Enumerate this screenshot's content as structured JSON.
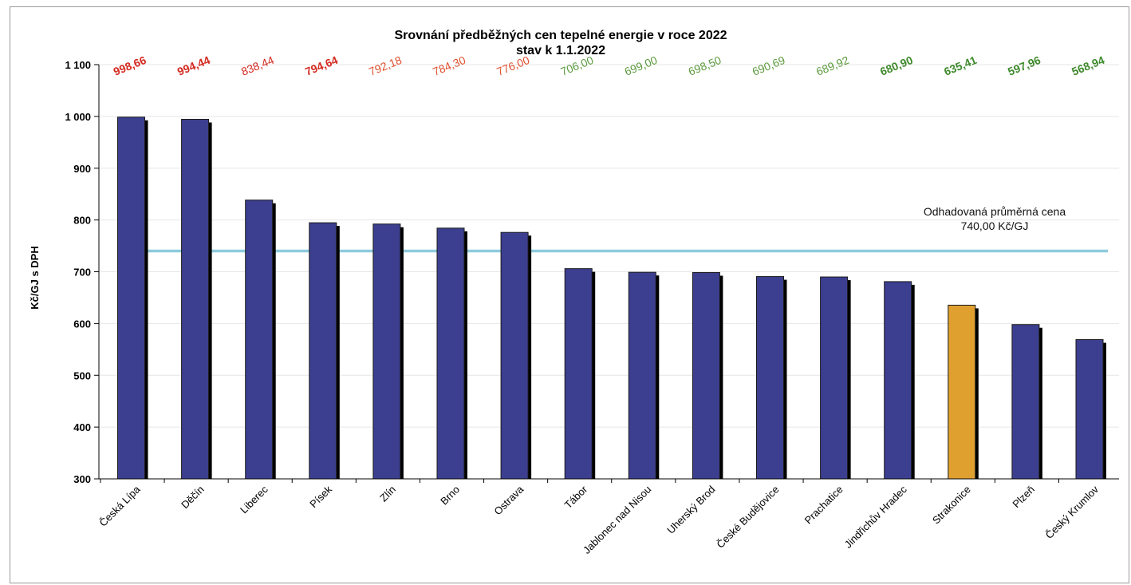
{
  "chart_data": {
    "type": "bar",
    "title": "Srovnání předběžných cen tepelné energie v roce 2022",
    "subtitle": "stav k 1.1.2022",
    "ylabel": "Kč/GJ s DPH",
    "xlabel": "",
    "ylim": [
      300,
      1100
    ],
    "yticks": [
      "1 100",
      "1 000",
      "900",
      "800",
      "700",
      "600",
      "500",
      "400",
      "300"
    ],
    "ytick_values": [
      1100,
      1000,
      900,
      800,
      700,
      600,
      500,
      400,
      300
    ],
    "grid": true,
    "categories": [
      "Česká Lípa",
      "Děčín",
      "Liberec",
      "Písek",
      "Zlín",
      "Brno",
      "Ostrava",
      "Tábor",
      "Jablonec nad Nisou",
      "Uherský Brod",
      "České Budějovice",
      "Prachatice",
      "Jindřichův Hradec",
      "Strakonice",
      "Plzeň",
      "Český Krumlov"
    ],
    "values": [
      998.66,
      994.44,
      838.44,
      794.64,
      792.18,
      784.3,
      776.0,
      706.0,
      699.0,
      698.5,
      690.69,
      689.92,
      680.9,
      635.41,
      597.96,
      568.94
    ],
    "value_labels": [
      "998,66",
      "994,44",
      "838,44",
      "794,64",
      "792,18",
      "784,30",
      "776,00",
      "706,00",
      "699,00",
      "698,50",
      "690,69",
      "689,92",
      "680,90",
      "635,41",
      "597,96",
      "568,94"
    ],
    "label_colors": [
      "#d42a20",
      "#d42a20",
      "#d42a20",
      "#d42a20",
      "#e0502f",
      "#e0502f",
      "#e0502f",
      "#5a9a3c",
      "#5a9a3c",
      "#5a9a3c",
      "#5a9a3c",
      "#5a9a3c",
      "#3f8a2c",
      "#3f8a2c",
      "#3f8a2c",
      "#3f8a2c"
    ],
    "label_bold": [
      true,
      true,
      false,
      true,
      false,
      false,
      false,
      false,
      false,
      false,
      false,
      false,
      true,
      true,
      true,
      true
    ],
    "bar_color": "#3c3f8f",
    "highlight_index": 13,
    "highlight_color": "#e0a030",
    "reference_line": {
      "value": 740.0,
      "label_line1": "Odhadovaná průměrná cena",
      "label_line2": "740,00 Kč/GJ",
      "color": "#8ecbdd"
    }
  }
}
